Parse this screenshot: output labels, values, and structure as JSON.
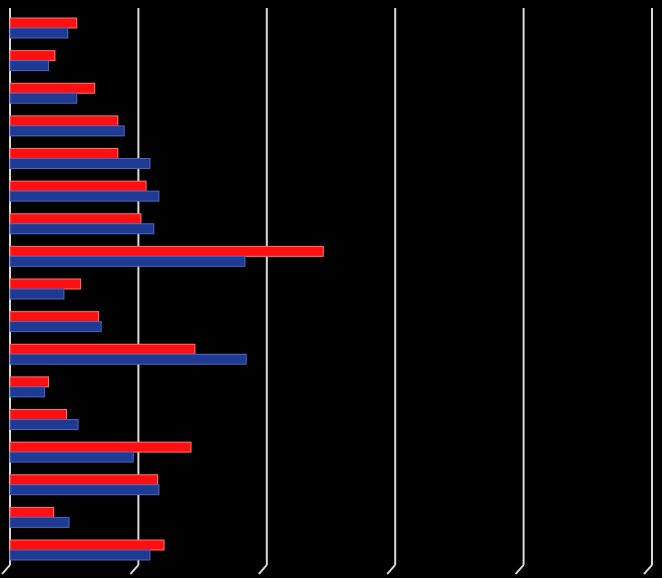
{
  "chart_data": {
    "type": "hbar",
    "categories": [
      null,
      null,
      null,
      null,
      null,
      null,
      null,
      null,
      null,
      null,
      null,
      null,
      null,
      null,
      null,
      null,
      null
    ],
    "series": [
      {
        "color": "#ff1010",
        "values": [
          0.52,
          0.35,
          0.66,
          0.84,
          0.84,
          1.06,
          1.02,
          2.44,
          0.55,
          0.69,
          1.44,
          0.3,
          0.44,
          1.41,
          1.15,
          0.34,
          1.2
        ]
      },
      {
        "color": "#1f3a93",
        "values": [
          0.45,
          0.3,
          0.52,
          0.89,
          1.09,
          1.16,
          1.12,
          1.83,
          0.42,
          0.71,
          1.84,
          0.27,
          0.53,
          0.96,
          1.16,
          0.46,
          1.09
        ]
      }
    ],
    "xlim": [
      0,
      5
    ],
    "xticks": [
      0,
      1,
      2,
      3,
      4,
      5
    ],
    "grid": true
  }
}
